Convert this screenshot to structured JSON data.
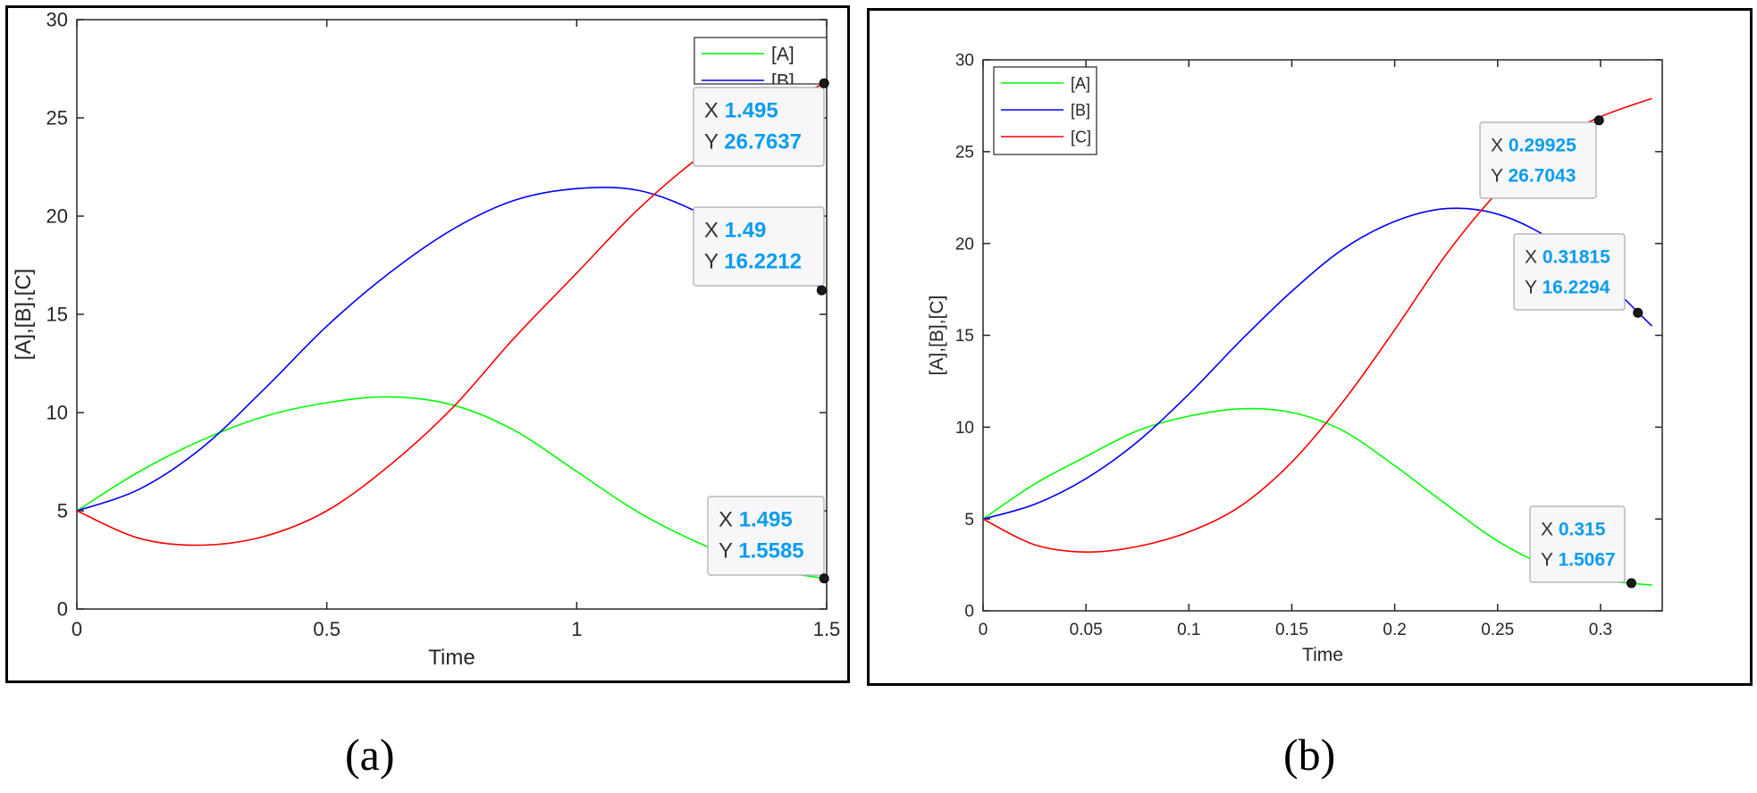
{
  "captions": {
    "a": "(a)",
    "b": "(b)"
  },
  "colors": {
    "A": "#00ff00",
    "B": "#0000ff",
    "C": "#ff0000",
    "datatip_value": "#0a9cf0",
    "axis": "#262626"
  },
  "chart_data": [
    {
      "type": "line",
      "panel": "a",
      "xlabel": "Time",
      "ylabel": "[A],[B],[C]",
      "xlim": [
        0,
        1.5
      ],
      "ylim": [
        0,
        30
      ],
      "xticks": [
        0,
        0.5,
        1,
        1.5
      ],
      "xtick_labels": [
        "0",
        "0.5",
        "1",
        "1.5"
      ],
      "yticks": [
        0,
        5,
        10,
        15,
        20,
        25,
        30
      ],
      "ytick_labels": [
        "0",
        "5",
        "10",
        "15",
        "20",
        "25",
        "30"
      ],
      "grid": false,
      "legend": {
        "position": "top-right",
        "entries": [
          "[A]",
          "[B]"
        ]
      },
      "x": [
        0,
        0.125,
        0.25,
        0.375,
        0.5,
        0.625,
        0.75,
        0.875,
        1.0,
        1.125,
        1.25,
        1.375,
        1.495
      ],
      "series": [
        {
          "name": "[A]",
          "values": [
            5.0,
            7.0,
            8.6,
            9.8,
            10.5,
            10.8,
            10.4,
            9.1,
            7.0,
            4.9,
            3.3,
            2.1,
            1.5585
          ]
        },
        {
          "name": "[B]",
          "values": [
            5.0,
            6.1,
            8.2,
            11.2,
            14.4,
            17.1,
            19.3,
            20.8,
            21.4,
            21.3,
            20.1,
            18.2,
            16.2212
          ]
        },
        {
          "name": "[C]",
          "values": [
            5.0,
            3.6,
            3.25,
            3.7,
            5.0,
            7.3,
            10.2,
            13.8,
            17.1,
            20.4,
            23.1,
            25.2,
            26.7637
          ]
        }
      ],
      "datatips": [
        {
          "series": "[C]",
          "x": 1.495,
          "y": 26.7637,
          "x_label": "1.495",
          "y_label": "26.7637"
        },
        {
          "series": "[B]",
          "x": 1.49,
          "y": 16.2212,
          "x_label": "1.49",
          "y_label": "16.2212"
        },
        {
          "series": "[A]",
          "x": 1.495,
          "y": 1.5585,
          "x_label": "1.495",
          "y_label": "1.5585"
        }
      ]
    },
    {
      "type": "line",
      "panel": "b",
      "xlabel": "Time",
      "ylabel": "[A],[B],[C]",
      "xlim": [
        0,
        0.33
      ],
      "ylim": [
        0,
        30
      ],
      "xticks": [
        0,
        0.05,
        0.1,
        0.15,
        0.2,
        0.25,
        0.3
      ],
      "xtick_labels": [
        "0",
        "0.05",
        "0.1",
        "0.15",
        "0.2",
        "0.25",
        "0.3"
      ],
      "yticks": [
        0,
        5,
        10,
        15,
        20,
        25,
        30
      ],
      "ytick_labels": [
        "0",
        "5",
        "10",
        "15",
        "20",
        "25",
        "30"
      ],
      "grid": false,
      "legend": {
        "position": "top-left",
        "entries": [
          "[A]",
          "[B]",
          "[C]"
        ]
      },
      "x": [
        0,
        0.025,
        0.05,
        0.075,
        0.1,
        0.125,
        0.15,
        0.175,
        0.2,
        0.225,
        0.25,
        0.275,
        0.3,
        0.325
      ],
      "series": [
        {
          "name": "[A]",
          "values": [
            5.0,
            6.9,
            8.4,
            9.8,
            10.6,
            11.0,
            10.8,
            9.8,
            7.9,
            5.8,
            3.8,
            2.4,
            1.7,
            1.4
          ]
        },
        {
          "name": "[B]",
          "values": [
            5.0,
            5.8,
            7.2,
            9.2,
            11.8,
            14.7,
            17.4,
            19.7,
            21.2,
            21.9,
            21.6,
            20.3,
            18.2,
            15.5
          ]
        },
        {
          "name": "[C]",
          "values": [
            5.0,
            3.6,
            3.2,
            3.5,
            4.3,
            5.7,
            8.1,
            11.4,
            15.3,
            19.4,
            22.8,
            25.4,
            26.9,
            27.9
          ]
        }
      ],
      "datatips": [
        {
          "series": "[C]",
          "x": 0.29925,
          "y": 26.7043,
          "x_label": "0.29925",
          "y_label": "26.7043"
        },
        {
          "series": "[B]",
          "x": 0.31815,
          "y": 16.2294,
          "x_label": "0.31815",
          "y_label": "16.2294"
        },
        {
          "series": "[A]",
          "x": 0.315,
          "y": 1.5067,
          "x_label": "0.315",
          "y_label": "1.5067"
        }
      ]
    }
  ]
}
